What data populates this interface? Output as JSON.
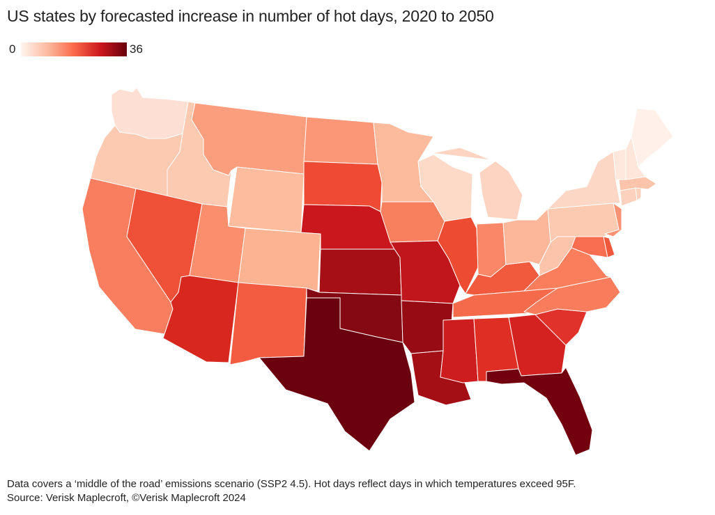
{
  "title": "US states by forecasted increase in number of hot days, 2020 to 2050",
  "legend": {
    "min": "0",
    "max": "36",
    "colors": [
      "#fff5f0",
      "#fcbba1",
      "#fb6a4a",
      "#cb181d",
      "#67000d"
    ]
  },
  "footnote": {
    "description": "Data covers a ‘middle of the road’ emissions scenario (SSP2 4.5). Hot days reflect days in which temperatures exceed 95F.",
    "source": "Source: Verisk Maplecroft, ©Verisk Maplecroft 2024"
  },
  "states": [
    {
      "name": "WA",
      "color": "#fde0d3"
    },
    {
      "name": "OR",
      "color": "#fcc9b1"
    },
    {
      "name": "CA",
      "color": "#f87e5f"
    },
    {
      "name": "ID",
      "color": "#fcc9b1"
    },
    {
      "name": "NV",
      "color": "#ef5038"
    },
    {
      "name": "MT",
      "color": "#fb9e7d"
    },
    {
      "name": "WY",
      "color": "#fcbc9d"
    },
    {
      "name": "UT",
      "color": "#fb8e6c"
    },
    {
      "name": "AZ",
      "color": "#d8271e"
    },
    {
      "name": "CO",
      "color": "#fcb392"
    },
    {
      "name": "NM",
      "color": "#f45c42"
    },
    {
      "name": "ND",
      "color": "#fb9677"
    },
    {
      "name": "SD",
      "color": "#ef4a33"
    },
    {
      "name": "NE",
      "color": "#c9171d"
    },
    {
      "name": "KS",
      "color": "#a50f15"
    },
    {
      "name": "OK",
      "color": "#850912"
    },
    {
      "name": "TX",
      "color": "#6b000e"
    },
    {
      "name": "MN",
      "color": "#fcbb9c"
    },
    {
      "name": "IA",
      "color": "#f9805f"
    },
    {
      "name": "MO",
      "color": "#c0161c"
    },
    {
      "name": "AR",
      "color": "#960b14"
    },
    {
      "name": "LA",
      "color": "#a30f15"
    },
    {
      "name": "WI",
      "color": "#fdd9c8"
    },
    {
      "name": "IL",
      "color": "#ed4c33"
    },
    {
      "name": "MS",
      "color": "#cd1d1f"
    },
    {
      "name": "MI",
      "color": "#fdd4c2"
    },
    {
      "name": "IN",
      "color": "#fa8767"
    },
    {
      "name": "KY",
      "color": "#f25a3e"
    },
    {
      "name": "TN",
      "color": "#f66a4c"
    },
    {
      "name": "AL",
      "color": "#df2f25"
    },
    {
      "name": "OH",
      "color": "#fcb69a"
    },
    {
      "name": "GA",
      "color": "#d42220"
    },
    {
      "name": "FL",
      "color": "#73000f"
    },
    {
      "name": "SC",
      "color": "#e0312a"
    },
    {
      "name": "NC",
      "color": "#f97d5d"
    },
    {
      "name": "VA",
      "color": "#fa7d5c"
    },
    {
      "name": "WV",
      "color": "#fcc5ab"
    },
    {
      "name": "PA",
      "color": "#fcc9b1"
    },
    {
      "name": "NY",
      "color": "#fdd7c6"
    },
    {
      "name": "NJ",
      "color": "#fb9274"
    },
    {
      "name": "MD",
      "color": "#f96e50"
    },
    {
      "name": "DE",
      "color": "#f0583c"
    },
    {
      "name": "CT",
      "color": "#fcd1bd"
    },
    {
      "name": "RI",
      "color": "#fcd1bd"
    },
    {
      "name": "MA",
      "color": "#fcc5ab"
    },
    {
      "name": "VT",
      "color": "#fee8dd"
    },
    {
      "name": "NH",
      "color": "#fee6da"
    },
    {
      "name": "ME",
      "color": "#fff1ea"
    }
  ]
}
